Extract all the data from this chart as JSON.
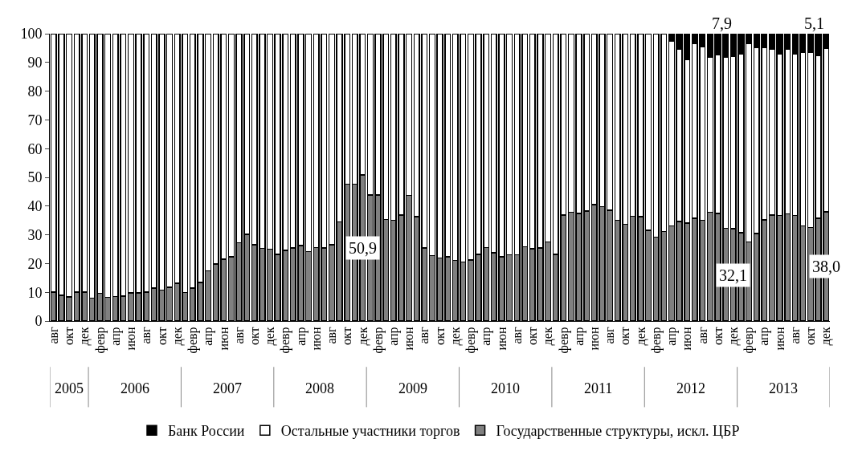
{
  "chart_data": {
    "type": "bar",
    "stacked": true,
    "categories": [
      "авг",
      null,
      "окт",
      null,
      "дек",
      null,
      "февр",
      null,
      "апр",
      null,
      "июн",
      null,
      "авг",
      null,
      "окт",
      null,
      "дек",
      null,
      "февр",
      null,
      "апр",
      null,
      "июн",
      null,
      "авг",
      null,
      "окт",
      null,
      "дек",
      null,
      "февр",
      null,
      "апр",
      null,
      "июн",
      null,
      "авг",
      null,
      "окт",
      null,
      "дек",
      null,
      "февр",
      null,
      "апр",
      null,
      "июн",
      null,
      "авг",
      null,
      "окт",
      null,
      "дек",
      null,
      "февр",
      null,
      "апр",
      null,
      "июн",
      null,
      "авг",
      null,
      "окт",
      null,
      "дек",
      null,
      "февр",
      null,
      "апр",
      null,
      "июн",
      null,
      "авг",
      null,
      "окт",
      null,
      "дек",
      null,
      "февр",
      null,
      "апр",
      null,
      "июн",
      null,
      "авг",
      null,
      "окт",
      null,
      "дек",
      null,
      "февр",
      null,
      "апр",
      null,
      "июн",
      null,
      "авг",
      null,
      "окт",
      null,
      "дек"
    ],
    "annotations": [
      "2005",
      "2006",
      "2007",
      "2008",
      "2009",
      "2010",
      "2011",
      "2012",
      "2013"
    ],
    "ylim": [
      0,
      100
    ],
    "yticks": [
      0,
      10,
      20,
      30,
      40,
      50,
      60,
      70,
      80,
      90,
      100
    ],
    "legend": "bottom",
    "series": [
      {
        "name": "Государственные структуры, искл. ЦБР",
        "color": "#808080",
        "values": [
          10.1,
          9.0,
          8.4,
          10.1,
          10.1,
          7.9,
          9.6,
          8.3,
          8.5,
          8.7,
          9.8,
          9.8,
          10.0,
          11.5,
          10.7,
          11.7,
          13.1,
          9.9,
          11.5,
          13.4,
          17.4,
          19.9,
          21.5,
          22.4,
          27.3,
          30.2,
          26.5,
          25.3,
          25.0,
          23.2,
          24.6,
          25.4,
          26.2,
          24.1,
          25.6,
          25.4,
          26.5,
          34.5,
          47.6,
          47.6,
          50.9,
          43.8,
          43.9,
          35.3,
          35.0,
          36.9,
          43.7,
          36.3,
          25.4,
          22.8,
          21.9,
          22.4,
          21.1,
          20.6,
          21.3,
          23.2,
          25.6,
          23.7,
          22.4,
          23.0,
          23.0,
          25.9,
          25.2,
          25.4,
          27.5,
          23.2,
          36.9,
          37.8,
          37.5,
          38.2,
          40.5,
          39.8,
          38.6,
          35.0,
          33.7,
          36.5,
          36.3,
          31.6,
          29.2,
          31.1,
          33.1,
          34.6,
          34.1,
          35.7,
          35.0,
          37.8,
          37.4,
          32.3,
          32.1,
          30.7,
          27.5,
          30.5,
          35.2,
          36.9,
          36.7,
          37.3,
          36.7,
          33.1,
          32.6,
          35.8,
          38.0
        ],
        "value_labels": [
          null,
          null,
          null,
          null,
          null,
          null,
          null,
          null,
          null,
          null,
          null,
          null,
          null,
          null,
          null,
          null,
          null,
          null,
          null,
          null,
          null,
          null,
          null,
          null,
          null,
          null,
          null,
          null,
          null,
          null,
          null,
          null,
          null,
          null,
          null,
          null,
          null,
          null,
          null,
          null,
          "50,9",
          null,
          null,
          null,
          null,
          null,
          null,
          null,
          null,
          null,
          null,
          null,
          null,
          null,
          null,
          null,
          null,
          null,
          null,
          null,
          null,
          null,
          null,
          null,
          null,
          null,
          null,
          null,
          null,
          null,
          null,
          null,
          null,
          null,
          null,
          null,
          null,
          null,
          null,
          null,
          null,
          null,
          null,
          null,
          null,
          null,
          null,
          null,
          "32,1",
          null,
          null,
          null,
          null,
          null,
          null,
          null,
          null,
          null,
          null,
          null,
          "38,0"
        ]
      },
      {
        "name": "Остальные участники торгов",
        "color": "#ffffff",
        "values": [
          89.9,
          91.0,
          91.6,
          89.9,
          89.9,
          92.1,
          90.4,
          91.7,
          91.5,
          91.3,
          90.2,
          90.2,
          90.0,
          88.5,
          89.3,
          88.3,
          86.9,
          90.1,
          88.5,
          86.6,
          82.6,
          80.1,
          78.5,
          77.6,
          72.7,
          69.8,
          73.5,
          74.7,
          75.0,
          76.8,
          75.4,
          74.6,
          73.8,
          75.9,
          74.4,
          74.6,
          73.5,
          65.5,
          52.4,
          52.4,
          49.1,
          56.2,
          56.1,
          64.7,
          65.0,
          63.1,
          56.3,
          63.7,
          74.6,
          77.2,
          78.1,
          77.6,
          78.9,
          79.4,
          78.7,
          76.8,
          74.4,
          76.3,
          77.6,
          77.0,
          77.0,
          74.1,
          74.8,
          74.6,
          72.5,
          76.8,
          63.1,
          62.2,
          62.5,
          61.8,
          59.5,
          60.2,
          61.4,
          65.0,
          66.3,
          63.5,
          63.7,
          68.4,
          70.8,
          68.9,
          64.2,
          59.9,
          56.8,
          60.9,
          60.6,
          53.9,
          55.2,
          59.6,
          60.0,
          62.3,
          69.1,
          64.8,
          60.1,
          57.8,
          56.3,
          57.4,
          56.3,
          60.3,
          60.8,
          56.5,
          56.9
        ]
      },
      {
        "name": "Банк России",
        "color": "#000000",
        "values": [
          null,
          null,
          null,
          null,
          null,
          null,
          null,
          null,
          null,
          null,
          null,
          null,
          null,
          null,
          null,
          null,
          null,
          null,
          null,
          null,
          null,
          null,
          null,
          null,
          null,
          null,
          null,
          null,
          null,
          null,
          null,
          null,
          null,
          null,
          null,
          null,
          null,
          null,
          null,
          null,
          null,
          null,
          null,
          null,
          null,
          null,
          null,
          null,
          null,
          null,
          null,
          null,
          null,
          null,
          null,
          null,
          null,
          null,
          null,
          null,
          null,
          null,
          null,
          null,
          null,
          null,
          null,
          null,
          null,
          null,
          null,
          null,
          null,
          null,
          null,
          null,
          null,
          null,
          null,
          null,
          2.7,
          5.5,
          9.1,
          3.4,
          4.4,
          8.3,
          7.4,
          8.1,
          7.9,
          7.0,
          3.4,
          4.7,
          4.7,
          5.3,
          7.0,
          5.3,
          7.0,
          6.6,
          6.6,
          7.7,
          5.1
        ],
        "value_labels": [
          null,
          null,
          null,
          null,
          null,
          null,
          null,
          null,
          null,
          null,
          null,
          null,
          null,
          null,
          null,
          null,
          null,
          null,
          null,
          null,
          null,
          null,
          null,
          null,
          null,
          null,
          null,
          null,
          null,
          null,
          null,
          null,
          null,
          null,
          null,
          null,
          null,
          null,
          null,
          null,
          null,
          null,
          null,
          null,
          null,
          null,
          null,
          null,
          null,
          null,
          null,
          null,
          null,
          null,
          null,
          null,
          null,
          null,
          null,
          null,
          null,
          null,
          null,
          null,
          null,
          null,
          null,
          null,
          null,
          null,
          null,
          null,
          null,
          null,
          null,
          null,
          null,
          null,
          null,
          null,
          null,
          null,
          null,
          null,
          null,
          null,
          null,
          null,
          "7,9",
          null,
          null,
          null,
          null,
          null,
          null,
          null,
          null,
          null,
          null,
          null,
          "5,1"
        ]
      }
    ]
  }
}
